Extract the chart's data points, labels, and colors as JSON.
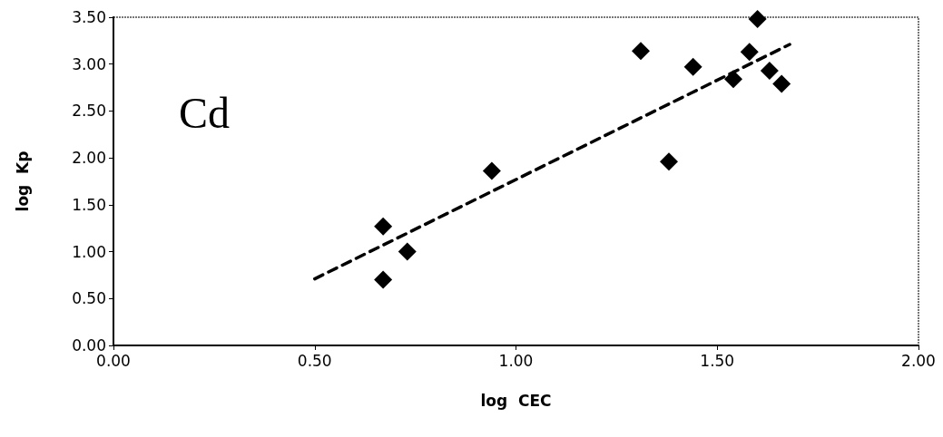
{
  "chart_data": {
    "type": "scatter",
    "xlabel": "log  CEC",
    "ylabel": "log  Kp",
    "annotations": [
      "Cd"
    ],
    "xlim": [
      0,
      2
    ],
    "ylim": [
      0,
      3.5
    ],
    "xticks": [
      {
        "value": 0,
        "label": "0.00"
      },
      {
        "value": 0.5,
        "label": "0.50"
      },
      {
        "value": 1,
        "label": "1.00"
      },
      {
        "value": 1.5,
        "label": "1.50"
      },
      {
        "value": 2,
        "label": "2.00"
      }
    ],
    "yticks": [
      {
        "value": 0,
        "label": "0.00"
      },
      {
        "value": 0.5,
        "label": "0.50"
      },
      {
        "value": 1,
        "label": "1.00"
      },
      {
        "value": 1.5,
        "label": "1.50"
      },
      {
        "value": 2,
        "label": "2.00"
      },
      {
        "value": 2.5,
        "label": "2.50"
      },
      {
        "value": 3,
        "label": "3.00"
      },
      {
        "value": 3.5,
        "label": "3.50"
      }
    ],
    "grid": false,
    "series": [
      {
        "color": "#000000",
        "marker": "diamond",
        "x": [
          0.67,
          0.67,
          0.73,
          0.94,
          1.31,
          1.38,
          1.44,
          1.54,
          1.58,
          1.6,
          1.63,
          1.66
        ],
        "values": [
          1.27,
          0.7,
          1.0,
          1.86,
          3.14,
          1.96,
          2.97,
          2.84,
          3.13,
          3.48,
          2.93,
          2.79
        ]
      },
      {
        "type": "line",
        "color": "#000000",
        "marker": "none",
        "line_style": "dashed",
        "x": [
          0.5,
          1.68
        ],
        "values": [
          0.71,
          3.21
        ]
      }
    ]
  }
}
